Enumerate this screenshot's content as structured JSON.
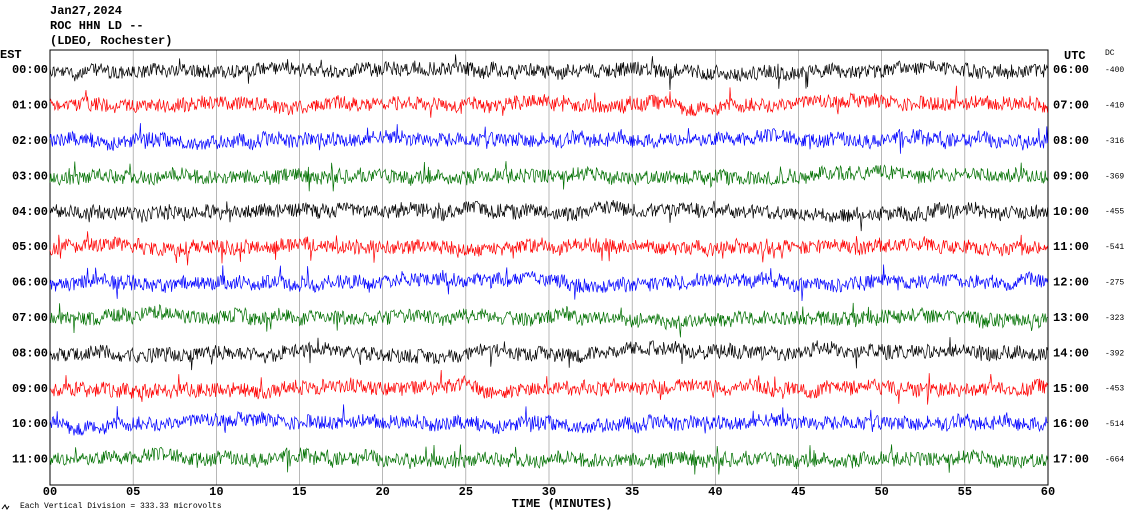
{
  "chart_data": {
    "type": "helicorder",
    "title": "Jan27,2024",
    "subtitle": "ROC HHN LD --",
    "source": "(LDEO, Rochester)",
    "left_label": "EST",
    "right_label": "UTC",
    "dc_label": "DC",
    "xlabel": "TIME (MINUTES)",
    "scale_note": "Each Vertical Division =  333.33 microvolts",
    "xlim": [
      0,
      60
    ],
    "xticks": [
      {
        "value": 0,
        "label": "00"
      },
      {
        "value": 5,
        "label": "05"
      },
      10,
      15,
      20,
      25,
      30,
      35,
      40,
      45,
      50,
      55,
      60
    ],
    "rows": [
      "00:00",
      "01:00",
      "02:00",
      "03:00",
      "04:00",
      "05:00",
      "06:00",
      "07:00",
      "08:00",
      "09:00",
      "10:00",
      "11:00"
    ],
    "utc_rows": [
      "06:00",
      "07:00",
      "08:00",
      "09:00",
      "10:00",
      "11:00",
      "12:00",
      "13:00",
      "14:00",
      "15:00",
      "16:00",
      "17:00"
    ],
    "dc": [
      -400,
      -410,
      -316,
      -369,
      -455,
      -541,
      -275,
      -323,
      -392,
      -453,
      -514,
      -664
    ],
    "colors": [
      "#000000",
      "#ff0000",
      "#0000ff",
      "#007000",
      "#000000",
      "#ff0000",
      "#0000ff",
      "#007000",
      "#000000",
      "#ff0000",
      "#0000ff",
      "#007000"
    ]
  }
}
